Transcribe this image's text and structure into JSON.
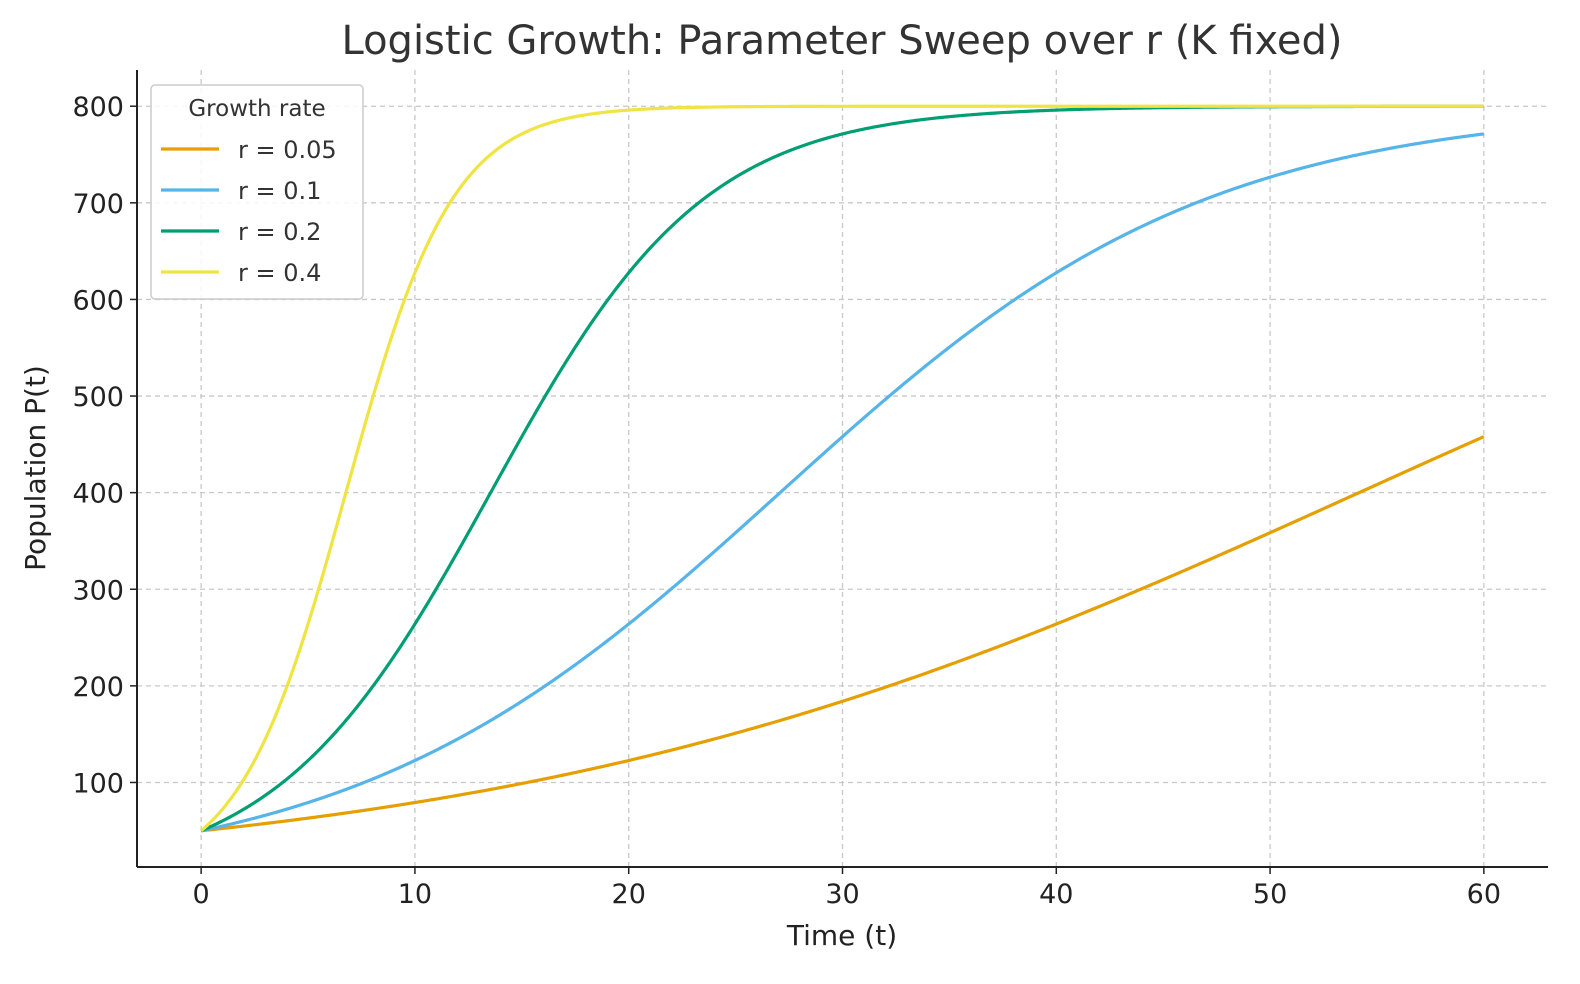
{
  "chart_data": {
    "type": "line",
    "title": "Logistic Growth: Parameter Sweep over r (K fixed)",
    "xlabel": "Time (t)",
    "ylabel": "Population P(t)",
    "xlim": [
      -3,
      63
    ],
    "ylim": [
      12.5,
      837.5
    ],
    "xticks": [
      0,
      10,
      20,
      30,
      40,
      50,
      60
    ],
    "yticks": [
      100,
      200,
      300,
      400,
      500,
      600,
      700,
      800
    ],
    "grid": true,
    "legend": {
      "title": "Growth rate",
      "placement": "top-left"
    },
    "model": {
      "K": 800,
      "P0": 50,
      "t_start": 0,
      "t_end": 60
    },
    "x": [
      0,
      10,
      20,
      30,
      40,
      50,
      60
    ],
    "series": [
      {
        "name": "r = 0.05",
        "r": 0.05,
        "color": "#E69F00",
        "values": [
          50,
          79.2,
          122.7,
          184.0,
          264.0,
          358.5,
          458.0
        ]
      },
      {
        "name": "r = 0.1",
        "r": 0.1,
        "color": "#56B4E9",
        "values": [
          50,
          122.7,
          264.0,
          458.0,
          627.6,
          726.6,
          771.3
        ]
      },
      {
        "name": "r = 0.2",
        "r": 0.2,
        "color": "#009E73",
        "values": [
          50,
          264.0,
          627.6,
          771.3,
          796.0,
          799.5,
          799.9
        ]
      },
      {
        "name": "r = 0.4",
        "r": 0.4,
        "color": "#F0E442",
        "values": [
          50,
          627.6,
          796.0,
          799.9,
          800.0,
          800.0,
          800.0
        ]
      }
    ]
  }
}
